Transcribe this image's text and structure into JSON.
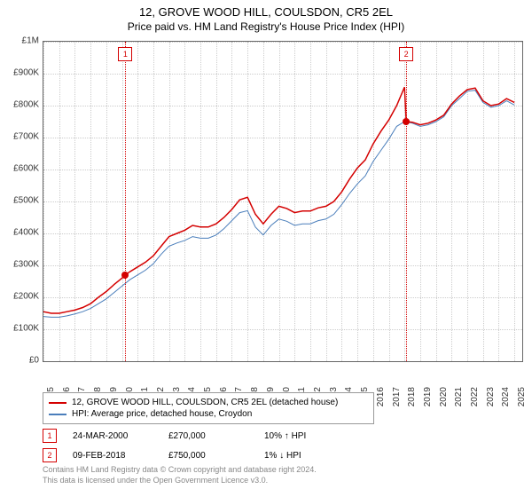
{
  "title": "12, GROVE WOOD HILL, COULSDON, CR5 2EL",
  "subtitle": "Price paid vs. HM Land Registry's House Price Index (HPI)",
  "chart": {
    "type": "line",
    "background_color": "#ffffff",
    "grid_color": "#cccccc",
    "border_color": "#666666",
    "xlim": [
      1995,
      2025.5
    ],
    "ylim": [
      0,
      1000000
    ],
    "ytick_step": 100000,
    "yticks": [
      "£0",
      "£100K",
      "£200K",
      "£300K",
      "£400K",
      "£500K",
      "£600K",
      "£700K",
      "£800K",
      "£900K",
      "£1M"
    ],
    "xticks": [
      "1995",
      "1996",
      "1997",
      "1998",
      "1999",
      "2000",
      "2001",
      "2002",
      "2003",
      "2004",
      "2005",
      "2006",
      "2007",
      "2008",
      "2009",
      "2010",
      "2011",
      "2012",
      "2013",
      "2014",
      "2015",
      "2016",
      "2017",
      "2018",
      "2019",
      "2020",
      "2021",
      "2022",
      "2023",
      "2024",
      "2025"
    ],
    "series": [
      {
        "name": "property",
        "label": "12, GROVE WOOD HILL, COULSDON, CR5 2EL (detached house)",
        "color": "#d40000",
        "line_width": 1.5,
        "data": [
          [
            1995,
            155000
          ],
          [
            1995.5,
            150000
          ],
          [
            1996,
            150000
          ],
          [
            1996.5,
            155000
          ],
          [
            1997,
            160000
          ],
          [
            1997.5,
            168000
          ],
          [
            1998,
            180000
          ],
          [
            1998.5,
            200000
          ],
          [
            1999,
            218000
          ],
          [
            1999.5,
            240000
          ],
          [
            2000,
            260000
          ],
          [
            2000.22,
            270000
          ],
          [
            2000.5,
            280000
          ],
          [
            2001,
            295000
          ],
          [
            2001.5,
            310000
          ],
          [
            2002,
            330000
          ],
          [
            2002.5,
            360000
          ],
          [
            2003,
            390000
          ],
          [
            2003.5,
            400000
          ],
          [
            2004,
            410000
          ],
          [
            2004.5,
            425000
          ],
          [
            2005,
            420000
          ],
          [
            2005.5,
            420000
          ],
          [
            2006,
            430000
          ],
          [
            2006.5,
            450000
          ],
          [
            2007,
            475000
          ],
          [
            2007.5,
            505000
          ],
          [
            2008,
            513000
          ],
          [
            2008.5,
            460000
          ],
          [
            2009,
            430000
          ],
          [
            2009.5,
            460000
          ],
          [
            2010,
            485000
          ],
          [
            2010.5,
            478000
          ],
          [
            2011,
            465000
          ],
          [
            2011.5,
            470000
          ],
          [
            2012,
            470000
          ],
          [
            2012.5,
            480000
          ],
          [
            2013,
            485000
          ],
          [
            2013.5,
            500000
          ],
          [
            2014,
            530000
          ],
          [
            2014.5,
            570000
          ],
          [
            2015,
            605000
          ],
          [
            2015.5,
            630000
          ],
          [
            2016,
            680000
          ],
          [
            2016.5,
            720000
          ],
          [
            2017,
            755000
          ],
          [
            2017.5,
            800000
          ],
          [
            2018,
            858000
          ],
          [
            2018.11,
            750000
          ],
          [
            2018.5,
            748000
          ],
          [
            2019,
            740000
          ],
          [
            2019.5,
            745000
          ],
          [
            2020,
            755000
          ],
          [
            2020.5,
            770000
          ],
          [
            2021,
            805000
          ],
          [
            2021.5,
            830000
          ],
          [
            2022,
            850000
          ],
          [
            2022.5,
            855000
          ],
          [
            2023,
            815000
          ],
          [
            2023.5,
            800000
          ],
          [
            2024,
            805000
          ],
          [
            2024.5,
            822000
          ],
          [
            2025,
            810000
          ]
        ]
      },
      {
        "name": "hpi",
        "label": "HPI: Average price, detached house, Croydon",
        "color": "#4a7ebb",
        "line_width": 1,
        "data": [
          [
            1995,
            140000
          ],
          [
            1995.5,
            138000
          ],
          [
            1996,
            138000
          ],
          [
            1996.5,
            142000
          ],
          [
            1997,
            148000
          ],
          [
            1997.5,
            155000
          ],
          [
            1998,
            165000
          ],
          [
            1998.5,
            180000
          ],
          [
            1999,
            195000
          ],
          [
            1999.5,
            215000
          ],
          [
            2000,
            235000
          ],
          [
            2000.5,
            255000
          ],
          [
            2001,
            270000
          ],
          [
            2001.5,
            285000
          ],
          [
            2002,
            305000
          ],
          [
            2002.5,
            335000
          ],
          [
            2003,
            360000
          ],
          [
            2003.5,
            370000
          ],
          [
            2004,
            378000
          ],
          [
            2004.5,
            390000
          ],
          [
            2005,
            385000
          ],
          [
            2005.5,
            385000
          ],
          [
            2006,
            395000
          ],
          [
            2006.5,
            415000
          ],
          [
            2007,
            440000
          ],
          [
            2007.5,
            465000
          ],
          [
            2008,
            471000
          ],
          [
            2008.5,
            420000
          ],
          [
            2009,
            395000
          ],
          [
            2009.5,
            425000
          ],
          [
            2010,
            445000
          ],
          [
            2010.5,
            438000
          ],
          [
            2011,
            425000
          ],
          [
            2011.5,
            430000
          ],
          [
            2012,
            430000
          ],
          [
            2012.5,
            440000
          ],
          [
            2013,
            445000
          ],
          [
            2013.5,
            460000
          ],
          [
            2014,
            490000
          ],
          [
            2014.5,
            525000
          ],
          [
            2015,
            555000
          ],
          [
            2015.5,
            580000
          ],
          [
            2016,
            625000
          ],
          [
            2016.5,
            660000
          ],
          [
            2017,
            695000
          ],
          [
            2017.5,
            735000
          ],
          [
            2018,
            750000
          ],
          [
            2018.5,
            745000
          ],
          [
            2019,
            735000
          ],
          [
            2019.5,
            740000
          ],
          [
            2020,
            750000
          ],
          [
            2020.5,
            765000
          ],
          [
            2021,
            800000
          ],
          [
            2021.5,
            822000
          ],
          [
            2022,
            845000
          ],
          [
            2022.5,
            848000
          ],
          [
            2023,
            810000
          ],
          [
            2023.5,
            795000
          ],
          [
            2024,
            800000
          ],
          [
            2024.5,
            815000
          ],
          [
            2025,
            802000
          ]
        ]
      }
    ],
    "markers": [
      {
        "id": "1",
        "x": 2000.22,
        "y": 270000,
        "color": "#d40000"
      },
      {
        "id": "2",
        "x": 2018.11,
        "y": 750000,
        "color": "#d40000"
      }
    ],
    "marker_box_color": "#d40000",
    "label_fontsize": 10,
    "title_fontsize": 13
  },
  "legend": {
    "border_color": "#999999",
    "items": [
      {
        "color": "#d40000",
        "label": "12, GROVE WOOD HILL, COULSDON, CR5 2EL (detached house)"
      },
      {
        "color": "#4a7ebb",
        "label": "HPI: Average price, detached house, Croydon"
      }
    ]
  },
  "transactions": [
    {
      "id": "1",
      "date": "24-MAR-2000",
      "price": "£270,000",
      "delta": "10% ↑ HPI",
      "color": "#d40000"
    },
    {
      "id": "2",
      "date": "09-FEB-2018",
      "price": "£750,000",
      "delta": "1% ↓ HPI",
      "color": "#d40000"
    }
  ],
  "footer": {
    "line1": "Contains HM Land Registry data © Crown copyright and database right 2024.",
    "line2": "This data is licensed under the Open Government Licence v3.0."
  }
}
